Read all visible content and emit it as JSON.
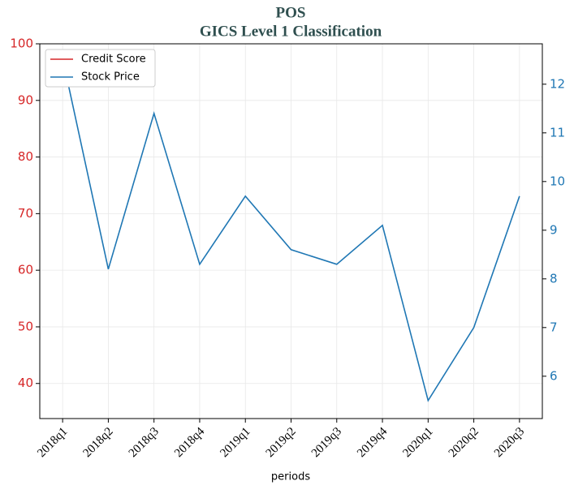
{
  "chart_data": {
    "type": "line",
    "title": "POS",
    "subtitle": "GICS Level 1 Classification",
    "xlabel": "periods",
    "categories": [
      "2018q1",
      "2018q2",
      "2018q3",
      "2018q4",
      "2019q1",
      "2019q2",
      "2019q3",
      "2019q4",
      "2020q1",
      "2020q2",
      "2020q3"
    ],
    "series": [
      {
        "name": "Credit Score",
        "color": "#d62728",
        "values": [
          null,
          null,
          null,
          null,
          null,
          null,
          null,
          null,
          null,
          null,
          null
        ]
      },
      {
        "name": "Stock Price",
        "color": "#1f77b4",
        "axis": "y2",
        "values": [
          12.53,
          8.2,
          11.4,
          8.3,
          9.7,
          8.6,
          8.3,
          9.1,
          5.5,
          7.0,
          9.7
        ]
      }
    ],
    "ylim": [
      33.8,
      100
    ],
    "yticks": [
      40,
      50,
      60,
      70,
      80,
      90,
      100
    ],
    "y2lim": [
      5.13,
      12.83
    ],
    "y2ticks": [
      6,
      7,
      8,
      9,
      10,
      11,
      12
    ],
    "grid": true,
    "legend": "upper left"
  }
}
